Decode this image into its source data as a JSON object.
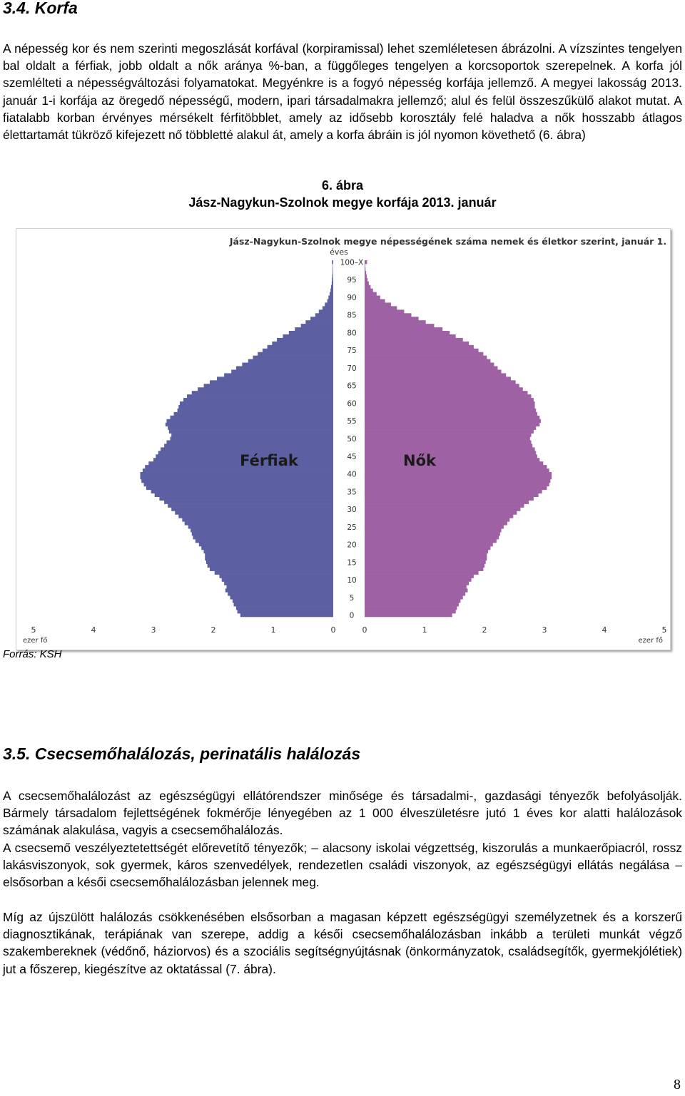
{
  "section_1": {
    "heading": "3.4. Korfa",
    "paragraph": "A népesség kor és nem szerinti megoszlását korfával (korpiramissal) lehet szemléletesen ábrázolni. A vízszintes tengelyen bal oldalt a férfiak, jobb oldalt a nők aránya %-ban, a függőleges tengelyen a korcsoportok szerepelnek. A korfa jól szemlélteti a népességváltozási folyamatokat. Megyénkre is a fogyó népesség korfája jellemző. A megyei lakosság 2013. január 1-i korfája az öregedő népességű, modern, ipari társadalmakra jellemző; alul és felül összeszűkülő alakot mutat. A fiatalabb korban érvényes mérsékelt férfitöbblet, amely az idősebb korosztály felé haladva a nők hosszabb átlagos élettartamát tükröző kifejezett nő többletté alakul át, amely a korfa ábráin is jól nyomon követhető (6. ábra)",
    "figure_number": "6. ábra",
    "figure_caption": "Jász-Nagykun-Szolnok megye korfája 2013. január",
    "source": "Forrás: KSH"
  },
  "section_2": {
    "heading": "3.5. Csecsemőhalálozás, perinatális halálozás",
    "paragraph_1": "A csecsemőhalálozást az egészségügyi ellátórendszer minősége és társadalmi-, gazdasági tényezők befolyásolják. Bármely társadalom fejlettségének fokmérője lényegében az 1 000 élveszületésre jutó 1 éves kor alatti halálozások számának alakulása, vagyis a csecsemőhalálozás.",
    "paragraph_2": "A csecsemő veszélyeztetettségét előrevetítő tényezők; – alacsony iskolai végzettség, kiszorulás a munkaerőpiacról, rossz lakásviszonyok, sok gyermek, káros szenvedélyek, rendezetlen családi viszonyok, az egészségügyi ellátás negálása – elsősorban a késői csecsemőhalálozásban jelennek meg.",
    "paragraph_3": "Míg az újszülött halálozás csökkenésében elsősorban a magasan képzett egészségügyi személyzetnek és a korszerű diagnosztikának, terápiának van szerepe, addig a késői csecsemőhalálozásban inkább a területi munkát végző szakembereknek (védőnő, háziorvos) és a szociális segítségnyújtásnak (önkormányzatok, családsegítők, gyermekjólétiek) jut a főszerep, kiegészítve az oktatással (7. ábra)."
  },
  "page_number": "8",
  "chart_data": {
    "type": "bar",
    "orientation": "horizontal-population-pyramid",
    "title": "Jász-Nagykun-Szolnok megye népességének száma nemek és életkor szerint, január 1.",
    "y_axis_label": "éves",
    "y_tick_labels": [
      "100–X",
      "95",
      "90",
      "85",
      "80",
      "75",
      "70",
      "65",
      "60",
      "55",
      "50",
      "45",
      "40",
      "35",
      "30",
      "25",
      "20",
      "15",
      "10",
      "5",
      "0"
    ],
    "x_tick_labels_left": [
      "5",
      "4",
      "3",
      "2",
      "1",
      "0"
    ],
    "x_tick_labels_right": [
      "0",
      "1",
      "2",
      "3",
      "4",
      "5"
    ],
    "x_unit": "ezer fő",
    "xlim": [
      0,
      5
    ],
    "ages": [
      0,
      1,
      2,
      3,
      4,
      5,
      6,
      7,
      8,
      9,
      10,
      11,
      12,
      13,
      14,
      15,
      16,
      17,
      18,
      19,
      20,
      21,
      22,
      23,
      24,
      25,
      26,
      27,
      28,
      29,
      30,
      31,
      32,
      33,
      34,
      35,
      36,
      37,
      38,
      39,
      40,
      41,
      42,
      43,
      44,
      45,
      46,
      47,
      48,
      49,
      50,
      51,
      52,
      53,
      54,
      55,
      56,
      57,
      58,
      59,
      60,
      61,
      62,
      63,
      64,
      65,
      66,
      67,
      68,
      69,
      70,
      71,
      72,
      73,
      74,
      75,
      76,
      77,
      78,
      79,
      80,
      81,
      82,
      83,
      84,
      85,
      86,
      87,
      88,
      89,
      90,
      91,
      92,
      93,
      94,
      95,
      96,
      97,
      98,
      99,
      100
    ],
    "series": [
      {
        "name": "Férfiak",
        "color": "#5c5fa2",
        "values": [
          1.55,
          1.6,
          1.62,
          1.66,
          1.68,
          1.72,
          1.76,
          1.8,
          1.78,
          1.82,
          1.86,
          1.9,
          1.98,
          2.06,
          2.1,
          2.12,
          2.14,
          2.14,
          2.16,
          2.2,
          2.24,
          2.3,
          2.34,
          2.36,
          2.38,
          2.42,
          2.48,
          2.52,
          2.58,
          2.64,
          2.7,
          2.76,
          2.82,
          2.9,
          2.98,
          3.04,
          3.12,
          3.16,
          3.2,
          3.22,
          3.22,
          3.18,
          3.14,
          3.08,
          3.0,
          2.96,
          2.92,
          2.88,
          2.82,
          2.78,
          2.72,
          2.7,
          2.74,
          2.76,
          2.8,
          2.78,
          2.72,
          2.66,
          2.6,
          2.58,
          2.56,
          2.5,
          2.44,
          2.36,
          2.26,
          2.16,
          2.06,
          1.94,
          1.82,
          1.7,
          1.62,
          1.52,
          1.42,
          1.34,
          1.26,
          1.18,
          1.1,
          1.02,
          0.94,
          0.84,
          0.74,
          0.64,
          0.54,
          0.46,
          0.38,
          0.3,
          0.24,
          0.18,
          0.14,
          0.1,
          0.08,
          0.06,
          0.045,
          0.035,
          0.025,
          0.02,
          0.015,
          0.01,
          0.008,
          0.006,
          0.02
        ]
      },
      {
        "name": "Nők",
        "color": "#9e62a4",
        "values": [
          1.46,
          1.52,
          1.54,
          1.57,
          1.6,
          1.64,
          1.68,
          1.72,
          1.7,
          1.74,
          1.78,
          1.82,
          1.9,
          1.98,
          2.0,
          2.02,
          2.04,
          2.04,
          2.06,
          2.1,
          2.14,
          2.2,
          2.24,
          2.26,
          2.28,
          2.32,
          2.38,
          2.42,
          2.48,
          2.54,
          2.6,
          2.66,
          2.74,
          2.82,
          2.9,
          2.96,
          3.04,
          3.08,
          3.1,
          3.12,
          3.12,
          3.08,
          3.04,
          2.98,
          2.92,
          2.88,
          2.86,
          2.84,
          2.8,
          2.78,
          2.76,
          2.78,
          2.82,
          2.86,
          2.92,
          2.94,
          2.92,
          2.88,
          2.86,
          2.84,
          2.84,
          2.82,
          2.78,
          2.72,
          2.64,
          2.58,
          2.52,
          2.44,
          2.36,
          2.28,
          2.22,
          2.16,
          2.1,
          2.04,
          1.98,
          1.9,
          1.82,
          1.74,
          1.64,
          1.52,
          1.42,
          1.3,
          1.16,
          1.02,
          0.9,
          0.78,
          0.66,
          0.54,
          0.44,
          0.34,
          0.26,
          0.2,
          0.14,
          0.1,
          0.07,
          0.05,
          0.035,
          0.025,
          0.015,
          0.01,
          0.04
        ]
      }
    ],
    "series_labels_on_chart": [
      "Férfiak",
      "Nők"
    ],
    "grid": false
  }
}
